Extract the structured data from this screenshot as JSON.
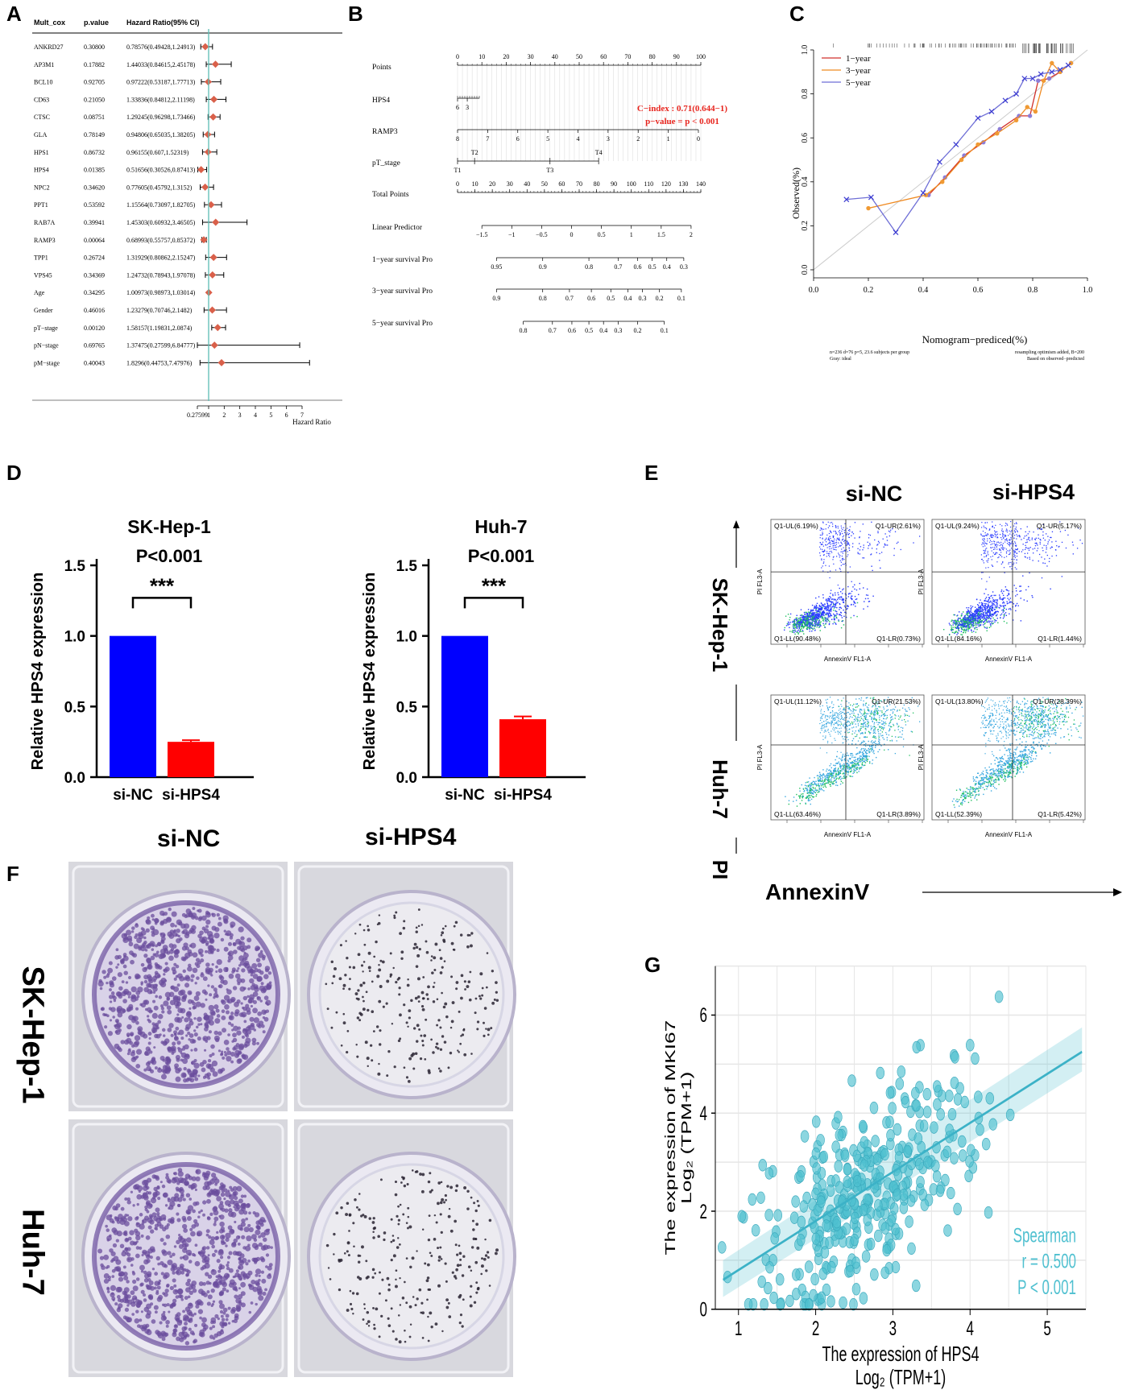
{
  "panels": {
    "A": "A",
    "B": "B",
    "C": "C",
    "D": "D",
    "E": "E",
    "F": "F",
    "G": "G"
  },
  "colors": {
    "forest_point": "#d9604a",
    "forest_ref": "#5bbcb4",
    "nomo_red": "#e8261f",
    "cal_1year": "#d0302c",
    "cal_3year": "#ef8a21",
    "cal_5year": "#6e6ed6",
    "bar_blue": "#0000ff",
    "bar_red": "#ff0000",
    "scatter": "#4fc0d0",
    "crystal_violet": "#6b4e9e"
  },
  "chart_data": [
    {
      "id": "A",
      "type": "forest",
      "headers": [
        "Mult_cox",
        "p.value",
        "Hazard Ratio(95% CI)"
      ],
      "rows": [
        {
          "name": "ANKRD27",
          "p": "0.30800",
          "ci": "0.78576(0.49428,1.24913)",
          "hr": 0.78576,
          "lo": 0.49428,
          "hi": 1.24913
        },
        {
          "name": "AP3M1",
          "p": "0.17882",
          "ci": "1.44033(0.84615,2.45178)",
          "hr": 1.44033,
          "lo": 0.84615,
          "hi": 2.45178
        },
        {
          "name": "BCL10",
          "p": "0.92705",
          "ci": "0.97222(0.53187,1.77713)",
          "hr": 0.97222,
          "lo": 0.53187,
          "hi": 1.77713
        },
        {
          "name": "CD63",
          "p": "0.21050",
          "ci": "1.33836(0.84812,2.11198)",
          "hr": 1.33836,
          "lo": 0.84812,
          "hi": 2.11198
        },
        {
          "name": "CTSC",
          "p": "0.08751",
          "ci": "1.29245(0.96298,1.73466)",
          "hr": 1.29245,
          "lo": 0.96298,
          "hi": 1.73466
        },
        {
          "name": "GLA",
          "p": "0.78149",
          "ci": "0.94806(0.65035,1.38205)",
          "hr": 0.94806,
          "lo": 0.65035,
          "hi": 1.38205
        },
        {
          "name": "HPS1",
          "p": "0.86732",
          "ci": "0.96155(0.607,1.52319)",
          "hr": 0.96155,
          "lo": 0.607,
          "hi": 1.52319
        },
        {
          "name": "HPS4",
          "p": "0.01385",
          "ci": "0.51656(0.30526,0.87413)",
          "hr": 0.51656,
          "lo": 0.30526,
          "hi": 0.87413
        },
        {
          "name": "NPC2",
          "p": "0.34620",
          "ci": "0.77605(0.45792,1.3152)",
          "hr": 0.77605,
          "lo": 0.45792,
          "hi": 1.3152
        },
        {
          "name": "PPT1",
          "p": "0.53592",
          "ci": "1.15564(0.73097,1.82705)",
          "hr": 1.15564,
          "lo": 0.73097,
          "hi": 1.82705
        },
        {
          "name": "RAB7A",
          "p": "0.39941",
          "ci": "1.45303(0.60932,3.46505)",
          "hr": 1.45303,
          "lo": 0.60932,
          "hi": 3.46505
        },
        {
          "name": "RAMP3",
          "p": "0.00064",
          "ci": "0.68993(0.55757,0.85372)",
          "hr": 0.68993,
          "lo": 0.55757,
          "hi": 0.85372
        },
        {
          "name": "TPP1",
          "p": "0.26724",
          "ci": "1.31929(0.80862,2.15247)",
          "hr": 1.31929,
          "lo": 0.80862,
          "hi": 2.15247
        },
        {
          "name": "VPS45",
          "p": "0.34369",
          "ci": "1.24732(0.78943,1.97078)",
          "hr": 1.24732,
          "lo": 0.78943,
          "hi": 1.97078
        },
        {
          "name": "Age",
          "p": "0.34295",
          "ci": "1.00973(0.98973,1.03014)",
          "hr": 1.00973,
          "lo": 0.98973,
          "hi": 1.03014
        },
        {
          "name": "Gender",
          "p": "0.46016",
          "ci": "1.23279(0.70746,2.1482)",
          "hr": 1.23279,
          "lo": 0.70746,
          "hi": 2.1482
        },
        {
          "name": "pT−stage",
          "p": "0.00120",
          "ci": "1.58157(1.19831,2.0874)",
          "hr": 1.58157,
          "lo": 1.19831,
          "hi": 2.0874
        },
        {
          "name": "pN−stage",
          "p": "0.69765",
          "ci": "1.37475(0.27599,6.84777)",
          "hr": 1.37475,
          "lo": 0.27599,
          "hi": 6.84777
        },
        {
          "name": "pM−stage",
          "p": "0.40043",
          "ci": "1.8296(0.44753,7.47976)",
          "hr": 1.8296,
          "lo": 0.44753,
          "hi": 7.47976
        }
      ],
      "xticks": [
        "0.27599",
        "1",
        "2",
        "3",
        "4",
        "5",
        "6",
        "7"
      ],
      "xtick_values": [
        0.27599,
        1,
        2,
        3,
        4,
        5,
        6,
        7
      ],
      "xlabel": "Hazard Ratio",
      "ref_line": 1
    },
    {
      "id": "B",
      "type": "nomogram",
      "rows": [
        {
          "label": "Points",
          "ticks": [
            "0",
            "10",
            "20",
            "30",
            "40",
            "50",
            "60",
            "70",
            "80",
            "90",
            "100"
          ],
          "range": [
            0,
            100
          ],
          "minor": true
        },
        {
          "label": "HPS4",
          "ticks": [
            "6",
            "3"
          ],
          "range": [
            0,
            8
          ],
          "minor": true
        },
        {
          "label": "RAMP3",
          "ticks": [
            "8",
            "7",
            "6",
            "5",
            "4",
            "3",
            "2",
            "1",
            "0"
          ],
          "range": [
            0,
            100
          ]
        },
        {
          "label": "pT_stage",
          "ticks": [
            "T1",
            "T2",
            "T3",
            "T4"
          ],
          "tick_values": [
            0,
            7,
            38,
            58
          ]
        },
        {
          "label": "Total Points",
          "ticks": [
            "0",
            "10",
            "20",
            "30",
            "40",
            "50",
            "60",
            "70",
            "80",
            "90",
            "100",
            "110",
            "120",
            "130",
            "140"
          ],
          "range": [
            0,
            140
          ]
        },
        {
          "label": "Linear Predictor",
          "ticks": [
            "−1.5",
            "−1",
            "−0.5",
            "0",
            "0.5",
            "1",
            "1.5",
            "2"
          ],
          "range": [
            -1.5,
            2
          ]
        },
        {
          "label": "1−year survival Pro",
          "ticks": [
            "0.95",
            "0.9",
            "0.8",
            "0.7",
            "0.6",
            "0.5",
            "0.4",
            "0.3"
          ]
        },
        {
          "label": "3−year survival Pro",
          "ticks": [
            "0.9",
            "0.8",
            "0.7",
            "0.6",
            "0.5",
            "0.4",
            "0.3",
            "0.2",
            "0.1"
          ]
        },
        {
          "label": "5−year survival Pro",
          "ticks": [
            "0.8",
            "0.7",
            "0.6",
            "0.5",
            "0.4",
            "0.3",
            "0.2",
            "0.1"
          ]
        }
      ],
      "annotation": [
        "C−index : 0.71(0.644−1)",
        "p−value = p < 0.001"
      ]
    },
    {
      "id": "C",
      "type": "line",
      "xlabel": "Nomogram−prediced(%)",
      "ylabel": "Observed(%)",
      "xlim": [
        0,
        1
      ],
      "ylim": [
        0,
        1
      ],
      "ticks": [
        "0.0",
        "0.2",
        "0.4",
        "0.6",
        "0.8",
        "1.0"
      ],
      "legend": [
        "1−year",
        "3−year",
        "5−year"
      ],
      "footnote_left": [
        "n=236 d=76 p=5, 23.6 subjects per group",
        "Gray: ideal"
      ],
      "footnote_right": [
        "resampling optimism added, B=200",
        "Based on observed−predicted"
      ],
      "series": [
        {
          "name": "1−year",
          "x": [
            0.42,
            0.48,
            0.55,
            0.62,
            0.68,
            0.75,
            0.79,
            0.82,
            0.86,
            0.9,
            0.94
          ],
          "y": [
            0.34,
            0.42,
            0.52,
            0.58,
            0.64,
            0.7,
            0.7,
            0.86,
            0.87,
            0.9,
            0.94
          ]
        },
        {
          "name": "3−year",
          "x": [
            0.2,
            0.41,
            0.47,
            0.54,
            0.6,
            0.67,
            0.74,
            0.78,
            0.81,
            0.84,
            0.87,
            0.9,
            0.94
          ],
          "y": [
            0.28,
            0.34,
            0.4,
            0.5,
            0.57,
            0.62,
            0.68,
            0.74,
            0.72,
            0.86,
            0.94,
            0.9,
            0.94
          ]
        },
        {
          "name": "5−year",
          "x": [
            0.12,
            0.21,
            0.3,
            0.4,
            0.46,
            0.52,
            0.6,
            0.65,
            0.7,
            0.74,
            0.77,
            0.8,
            0.83,
            0.87,
            0.9,
            0.93
          ],
          "y": [
            0.32,
            0.33,
            0.17,
            0.35,
            0.49,
            0.57,
            0.69,
            0.72,
            0.77,
            0.8,
            0.87,
            0.87,
            0.89,
            0.9,
            0.91,
            0.93
          ]
        }
      ]
    },
    {
      "id": "D1",
      "type": "bar",
      "title": "SK-Hep-1",
      "pvalue": "P<0.001",
      "sig": "***",
      "categories": [
        "si-NC",
        "si-HPS4"
      ],
      "values": [
        1.0,
        0.25
      ],
      "errors": [
        0,
        0.012
      ],
      "ylabel": "Relative HPS4 expression",
      "ylim": [
        0,
        1.5
      ],
      "yticks": [
        "0.0",
        "0.5",
        "1.0",
        "1.5"
      ]
    },
    {
      "id": "D2",
      "type": "bar",
      "title": "Huh-7",
      "pvalue": "P<0.001",
      "sig": "***",
      "categories": [
        "si-NC",
        "si-HPS4"
      ],
      "values": [
        1.0,
        0.41
      ],
      "errors": [
        0,
        0.02
      ],
      "ylabel": "Relative HPS4 expression",
      "ylim": [
        0,
        1.5
      ],
      "yticks": [
        "0.0",
        "0.5",
        "1.0",
        "1.5"
      ]
    },
    {
      "id": "E",
      "type": "scatter",
      "col_titles": [
        "si-NC",
        "si-HPS4"
      ],
      "row_titles": [
        "SK-Hep-1",
        "Huh-7"
      ],
      "ylabel": "PI",
      "xlabel": "AnnexinV",
      "axis_x": "AnnexinV FL1-A",
      "axis_y": "PI FL3-A",
      "plots": [
        {
          "UL": "Q1-UL(6.19%)",
          "UR": "Q1-UR(2.61%)",
          "LL": "Q1-LL(90.48%)",
          "LR": "Q1-LR(0.73%)"
        },
        {
          "UL": "Q1-UL(9.24%)",
          "UR": "Q1-UR(5.17%)",
          "LL": "Q1-LL(84.16%)",
          "LR": "Q1-LR(1.44%)"
        },
        {
          "UL": "Q1-UL(11.12%)",
          "UR": "Q1-UR(21.53%)",
          "LL": "Q1-LL(63.46%)",
          "LR": "Q1-LR(3.89%)"
        },
        {
          "UL": "Q1-UL(13.80%)",
          "UR": "Q1-UR(28.39%)",
          "LL": "Q1-LL(52.39%)",
          "LR": "Q1-LR(5.42%)"
        }
      ]
    },
    {
      "id": "G",
      "type": "scatter",
      "xlabel": [
        "The expression of HPS4",
        "Log₂ (TPM+1)"
      ],
      "ylabel": [
        "The expression of MKI67",
        "Log₂ (TPM+1)"
      ],
      "xlim": [
        0.7,
        5.5
      ],
      "ylim": [
        0,
        7
      ],
      "xticks": [
        "1",
        "2",
        "3",
        "4",
        "5"
      ],
      "yticks": [
        "0",
        "2",
        "4",
        "6"
      ],
      "fit": {
        "x0": 0.8,
        "y0": 0.6,
        "x1": 5.45,
        "y1": 5.25
      },
      "legend": [
        "Spearman",
        "r = 0.500",
        "P < 0.001"
      ],
      "n_points": 370
    }
  ],
  "F": {
    "col_titles": [
      "si-NC",
      "si-HPS4"
    ],
    "row_titles": [
      "SK-Hep-1",
      "Huh-7"
    ]
  }
}
